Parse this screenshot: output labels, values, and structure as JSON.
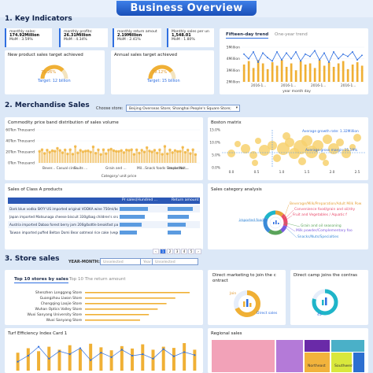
{
  "header": {
    "title": "Business Overview"
  },
  "sections": {
    "key_indicators": "1. Key Indicators",
    "merchandise_sales": "2. Merchandise Sales",
    "store_sales": "3. Store sales"
  },
  "kpis": [
    {
      "label": "monthly sales:",
      "value": "174.92Million",
      "mom": "MoM : 3.59%"
    },
    {
      "label": "monthly profits:",
      "value": "26.31Million",
      "mom": "MoM : 4.34%"
    },
    {
      "label": "monthly return amout",
      "value": "2.19Million",
      "mom": "MoM : 2.41%"
    },
    {
      "label": "Monthly sales per un",
      "value": "1,548.01",
      "mom": "MoM : 1.80%"
    }
  ],
  "trend_tabs": {
    "active": "Fifteen-day trend",
    "inactive": "One-year trend"
  },
  "targets": {
    "new_product": {
      "title": "New product sales target achieved",
      "percent": "75.26%",
      "target": "Target: 12 billion",
      "fraction": 0.7526
    },
    "annual": {
      "title": "Annual sales target achieved",
      "percent": "79.12%",
      "target": "Target: 15 billion",
      "fraction": 0.7912
    }
  },
  "trend_chart": {
    "y_ticks": [
      "5Million",
      "4Million",
      "3Million",
      "2Million"
    ],
    "x_ticks": [
      "2016-1...",
      "2016-1...",
      "2016-1...",
      "2016-1..."
    ],
    "xlabel": "year month day",
    "bars": [
      3.5,
      3.8,
      3.2,
      3.9,
      3.6,
      3.1,
      3.7,
      3.4,
      3.9,
      3.3,
      3.6,
      3.0,
      3.8,
      3.5,
      3.6,
      3.2,
      3.9,
      3.4,
      3.7,
      3.3,
      3.6,
      3.8,
      3.1,
      3.5,
      3.7,
      3.4
    ],
    "line": [
      4.4,
      4.0,
      4.6,
      3.7,
      4.5,
      4.1,
      3.8,
      4.6,
      3.9,
      4.5,
      4.0,
      4.6,
      3.8,
      4.4,
      4.2,
      4.7,
      3.9,
      4.5,
      3.7,
      4.6,
      4.0,
      4.4,
      4.2,
      4.6,
      3.9,
      4.3
    ]
  },
  "store_select": {
    "label": "Choose store:",
    "value": "Beijing Overseas Store; Shanghai People's Square Store;"
  },
  "commodity_chart": {
    "title": "Commodity price band distribution of sales volume",
    "y_ticks": [
      "60Ten Thousand",
      "40Ten Thousand",
      "20Ten Thousand",
      "0Ten Thousand"
    ],
    "x_ticks": [
      "Bever... Casual circu...",
      "Fruits ...",
      "Grain and ...",
      "Mil...Snack foods Snacks Nut...",
      "Imported ..."
    ],
    "xlabel": "Category/ unit price"
  },
  "boston": {
    "title": "Boston matrix",
    "avg_growth": "Average growth rate: 1.32Million",
    "avg_gross": "Average gross margin:15.19%",
    "y_ticks": [
      "15.0%",
      "10.0%",
      "5.0%",
      "0.0%"
    ],
    "x_ticks": [
      "0.0",
      "0.5",
      "1.0",
      "1.5",
      "2.0",
      "2.5"
    ]
  },
  "class_a": {
    "title": "Sales of Class A products",
    "columns": [
      "Pr sales(Hundred ...",
      "Return amount"
    ],
    "rows": [
      {
        "name": "Dark blue vodka SKYY US imported original VODKA wine 750ml/bottle",
        "sales": 0.62,
        "ret": 0.85
      },
      {
        "name": "Japan imported Matsunaga cheese biscuit 330g/bag children's snack foo",
        "sales": 0.55,
        "ret": 0.7
      },
      {
        "name": "Austria imported Dabao forest berry jam 200g/bottle breakfast partner",
        "sales": 0.48,
        "ret": 0.6
      },
      {
        "name": "Taiwan imported puffed Beltan Domi Bear oatmeal rice cake (vegetable f",
        "sales": 0.38,
        "ret": 0.45
      }
    ],
    "pages": [
      "1",
      "2",
      "3",
      "4",
      "5"
    ]
  },
  "category_analysis": {
    "title": "Sales category analysis",
    "labels": [
      {
        "text": "Beverage/Milk/Preparation/Adult Milk Pow",
        "color": "#e6a23c"
      },
      {
        "text": "Convenience food/grain and oil/dry",
        "color": "#e84a6a"
      },
      {
        "text": "Fruit and Vegetables / Aquatic f",
        "color": "#e84a6a"
      },
      {
        "text": "Grain and oil seasoning",
        "color": "#5aa45a"
      },
      {
        "text": "Milk powder/Complementary foo",
        "color": "#7a5ae0"
      },
      {
        "text": "Snacks/Nuts/Specialties",
        "color": "#3a8ad8"
      },
      {
        "text": "imported food",
        "color": "#3a8ad8"
      }
    ]
  },
  "year_month": {
    "label": "YEAR-MONTH:",
    "start": "Unselected",
    "year": "Year",
    "end": "Unselected"
  },
  "top10": {
    "tab_active": "Top 10 stores by sales",
    "tab_inactive": "Top 10 The return amount",
    "stores": [
      {
        "name": "Shenzhen Longgang Store",
        "value": 0.95
      },
      {
        "name": "Guangzhou Liwan Store",
        "value": 0.82
      },
      {
        "name": "Chongqing Laojie Store",
        "value": 0.74
      },
      {
        "name": "Wuhan Optics Valley Store",
        "value": 0.66
      },
      {
        "name": "Wuxi Sanyang University Store",
        "value": 0.58
      },
      {
        "name": "Wuxi Sanyang Store",
        "value": 0.5
      }
    ]
  },
  "direct_marketing": {
    "title": "Direct marketing to join the c ontract",
    "pct1": "Join",
    "pct2": "Direct sales"
  },
  "direct_camp": {
    "title": "Direct camp joins the contras",
    "pct": "45"
  },
  "turf": {
    "title": "Turf Efficiency Index Card 1",
    "values": [
      0.6,
      0.75,
      0.65,
      0.8,
      0.7,
      0.85,
      0.72,
      0.9,
      0.78,
      0.68,
      0.82,
      0.74,
      0.88,
      0.7,
      0.8,
      0.76,
      0.92,
      0.7
    ],
    "points": [
      0.3,
      0.5,
      0.8,
      0.4,
      0.65,
      0.55,
      0.75,
      0.35,
      0.6,
      0.45,
      0.7,
      0.5,
      0.55,
      0.4,
      0.72,
      0.48,
      0.62,
      0.52
    ]
  },
  "regional": {
    "title": "Regional sales",
    "cells": [
      {
        "name": "",
        "color": "#f2a2b8"
      },
      {
        "name": "",
        "color": "#b47ad8"
      },
      {
        "name": "",
        "color": "#6a2aa8"
      },
      {
        "name": "Northeast",
        "color": "#f2b33c"
      },
      {
        "name": "Southwest",
        "color": "#d9e83c"
      },
      {
        "name": "",
        "color": "#4ab0c8"
      },
      {
        "name": "",
        "color": "#2c6fd0"
      }
    ]
  }
}
